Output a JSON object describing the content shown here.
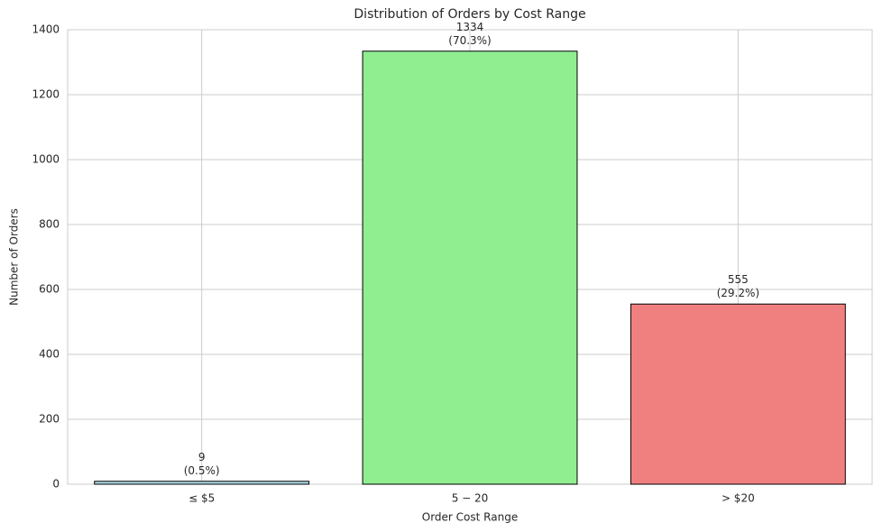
{
  "chart_data": {
    "type": "bar",
    "title": "Distribution of Orders by Cost Range",
    "x_label": "Order Cost Range",
    "y_label": "Number of Orders",
    "categories": [
      "≤ $5",
      "5 − 20",
      "> $20"
    ],
    "values": [
      9,
      1334,
      555
    ],
    "value_labels": [
      "9\n(0.5%)",
      "1334\n(70.3%)",
      "555\n(29.2%)"
    ],
    "colors": [
      "#add8e6",
      "#90ee90",
      "#f08080"
    ],
    "ylim": [
      0,
      1400
    ],
    "yticks": [
      0,
      200,
      400,
      600,
      800,
      1000,
      1200,
      1400
    ],
    "grid": true
  }
}
